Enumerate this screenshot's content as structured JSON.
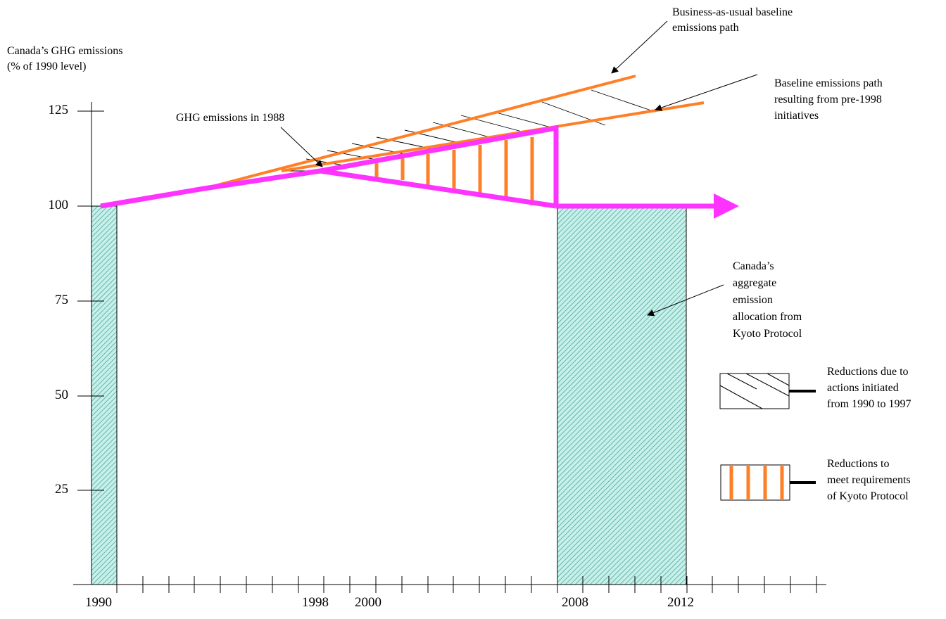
{
  "y_axis": {
    "title_line1": "Canada’s GHG emissions",
    "title_line2": "(% of 1990 level)",
    "ticks": [
      "125",
      "100",
      "75",
      "50",
      "25"
    ]
  },
  "x_axis": {
    "ticks": [
      "1990",
      "1998",
      "2000",
      "2008",
      "2012"
    ]
  },
  "annotations": {
    "bau_line1": "Business-as-usual baseline",
    "bau_line2": "emissions path",
    "pre1998_line1": "Baseline emissions path",
    "pre1998_line2": "resulting from pre-1998",
    "pre1998_line3": "initiatives",
    "ghg1988": "GHG emissions in 1988",
    "kyoto_line1": "Canada’s",
    "kyoto_line2": "aggregate",
    "kyoto_line3": "emission",
    "kyoto_line4": "allocation from",
    "kyoto_line5": "Kyoto Protocol"
  },
  "legend": {
    "item1_line1": "Reductions due to",
    "item1_line2": "actions initiated",
    "item1_line3": "from 1990 to 1997",
    "item2_line1": "Reductions to",
    "item2_line2": "meet requirements",
    "item2_line3": "of Kyoto Protocol"
  },
  "chart_data": {
    "type": "line",
    "y_levels": [
      125,
      100,
      75,
      50,
      25
    ],
    "allocation_level": 100,
    "series": [
      {
        "name": "Business-as-usual baseline emissions path",
        "x": [
          1994,
          2011
        ],
        "y": [
          105,
          136
        ],
        "color": "#ff7f27"
      },
      {
        "name": "Baseline emissions path resulting from pre-1998 initiatives",
        "x": [
          1996,
          2013
        ],
        "y": [
          110,
          128
        ],
        "color": "#ff7f27"
      }
    ],
    "colors": {
      "orange": "#ff7f27",
      "magenta": "#ff33ff",
      "teal_fill": "#9fe3d8",
      "teal_hatch": "#4aa89a"
    }
  }
}
